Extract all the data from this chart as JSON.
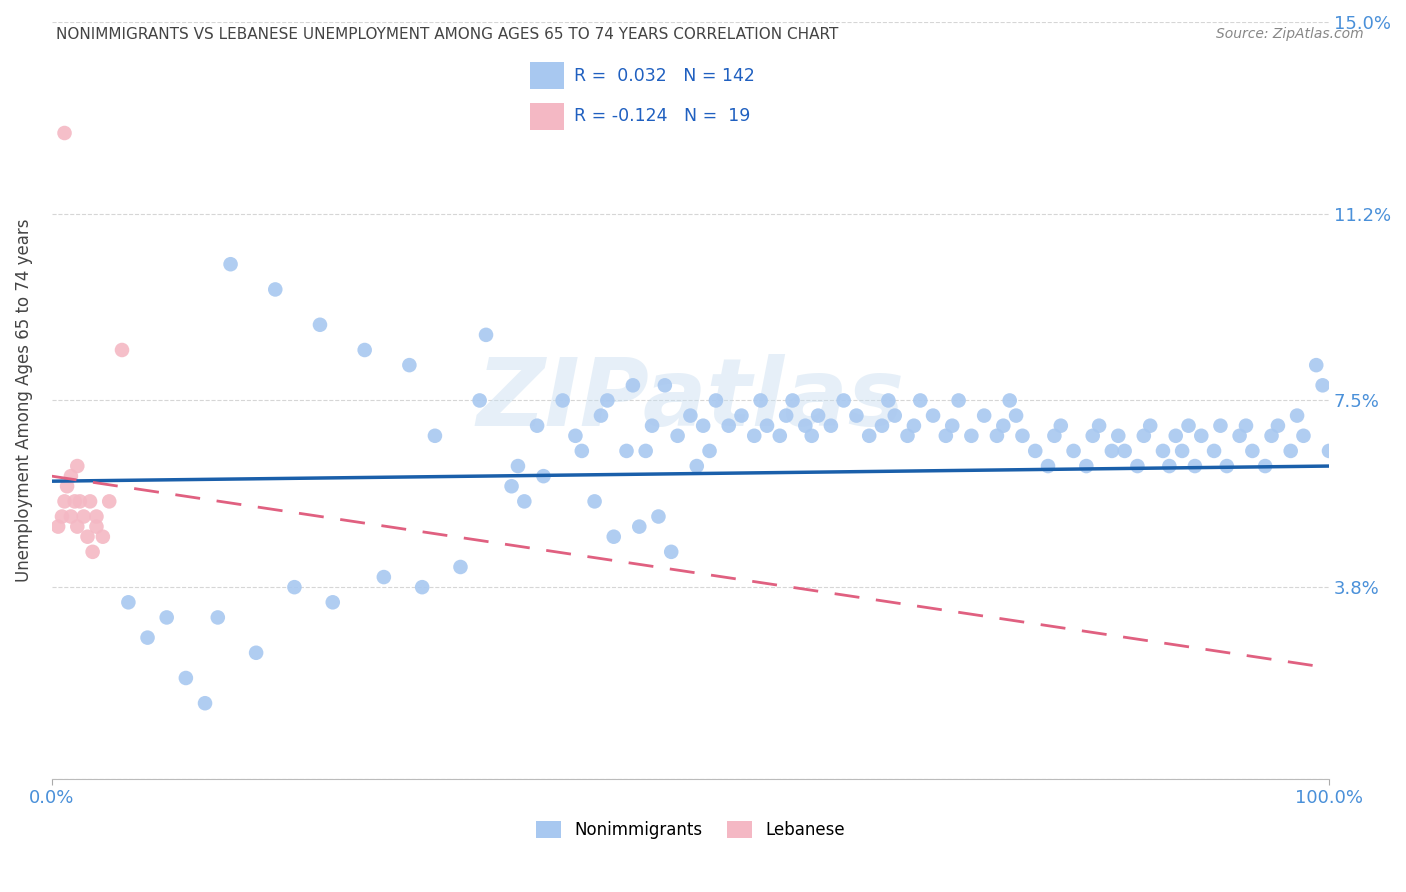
{
  "title": "NONIMMIGRANTS VS LEBANESE UNEMPLOYMENT AMONG AGES 65 TO 74 YEARS CORRELATION CHART",
  "source": "Source: ZipAtlas.com",
  "ylabel": "Unemployment Among Ages 65 to 74 years",
  "xlim": [
    0,
    100
  ],
  "ylim": [
    0,
    15.0
  ],
  "nonimmigrants_color": "#a8c8f0",
  "lebanese_color": "#f4b8c4",
  "trend_nonimmigrants_color": "#1a5faa",
  "trend_lebanese_color": "#e06080",
  "watermark": "ZIPatlas",
  "nonimmigrants_x": [
    14.0,
    17.5,
    21.0,
    24.5,
    28.0,
    30.0,
    33.5,
    36.5,
    38.0,
    40.0,
    41.0,
    43.0,
    45.0,
    45.5,
    46.5,
    47.0,
    48.0,
    49.0,
    50.0,
    51.0,
    51.5,
    52.0,
    53.0,
    54.0,
    55.0,
    55.5,
    56.0,
    57.0,
    57.5,
    58.0,
    59.0,
    59.5,
    60.0,
    61.0,
    62.0,
    63.0,
    64.0,
    65.0,
    65.5,
    66.0,
    67.0,
    67.5,
    68.0,
    69.0,
    70.0,
    70.5,
    71.0,
    72.0,
    73.0,
    74.0,
    74.5,
    75.0,
    75.5,
    76.0,
    77.0,
    78.0,
    78.5,
    79.0,
    80.0,
    81.0,
    81.5,
    82.0,
    83.0,
    83.5,
    84.0,
    85.0,
    85.5,
    86.0,
    87.0,
    87.5,
    88.0,
    88.5,
    89.0,
    89.5,
    90.0,
    91.0,
    91.5,
    92.0,
    93.0,
    93.5,
    94.0,
    95.0,
    95.5,
    96.0,
    97.0,
    97.5,
    98.0,
    99.0,
    99.5,
    100.0,
    37.0,
    47.5,
    50.5,
    44.0,
    46.0,
    48.5,
    42.5,
    36.0,
    13.0,
    16.0,
    19.0,
    22.0,
    26.0,
    29.0,
    32.0,
    6.0,
    7.5,
    9.0,
    10.5,
    12.0,
    34.0,
    38.5,
    41.5,
    43.5
  ],
  "nonimmigrants_y": [
    10.2,
    9.7,
    9.0,
    8.5,
    8.2,
    6.8,
    7.5,
    6.2,
    7.0,
    7.5,
    6.8,
    7.2,
    6.5,
    7.8,
    6.5,
    7.0,
    7.8,
    6.8,
    7.2,
    7.0,
    6.5,
    7.5,
    7.0,
    7.2,
    6.8,
    7.5,
    7.0,
    6.8,
    7.2,
    7.5,
    7.0,
    6.8,
    7.2,
    7.0,
    7.5,
    7.2,
    6.8,
    7.0,
    7.5,
    7.2,
    6.8,
    7.0,
    7.5,
    7.2,
    6.8,
    7.0,
    7.5,
    6.8,
    7.2,
    6.8,
    7.0,
    7.5,
    7.2,
    6.8,
    6.5,
    6.2,
    6.8,
    7.0,
    6.5,
    6.2,
    6.8,
    7.0,
    6.5,
    6.8,
    6.5,
    6.2,
    6.8,
    7.0,
    6.5,
    6.2,
    6.8,
    6.5,
    7.0,
    6.2,
    6.8,
    6.5,
    7.0,
    6.2,
    6.8,
    7.0,
    6.5,
    6.2,
    6.8,
    7.0,
    6.5,
    7.2,
    6.8,
    8.2,
    7.8,
    6.5,
    5.5,
    5.2,
    6.2,
    4.8,
    5.0,
    4.5,
    5.5,
    5.8,
    3.2,
    2.5,
    3.8,
    3.5,
    4.0,
    3.8,
    4.2,
    3.5,
    2.8,
    3.2,
    2.0,
    1.5,
    8.8,
    6.0,
    6.5,
    7.5
  ],
  "lebanese_x": [
    0.5,
    0.8,
    1.0,
    1.2,
    1.5,
    1.5,
    1.8,
    2.0,
    2.0,
    2.2,
    2.5,
    2.8,
    3.0,
    3.2,
    3.5,
    3.5,
    4.0,
    4.5,
    5.5,
    1.0
  ],
  "lebanese_y": [
    5.0,
    5.2,
    5.5,
    5.8,
    6.0,
    5.2,
    5.5,
    5.0,
    6.2,
    5.5,
    5.2,
    4.8,
    5.5,
    4.5,
    5.0,
    5.2,
    4.8,
    5.5,
    8.5,
    12.8
  ],
  "trend_nonimmigrants_y0": 5.9,
  "trend_nonimmigrants_y1": 6.2,
  "trend_lebanese_y0": 6.0,
  "trend_lebanese_y1": 2.2,
  "background_color": "#ffffff",
  "grid_color": "#cccccc",
  "title_color": "#444444",
  "source_color": "#888888",
  "axis_label_color": "#444444",
  "tick_color_right": "#4a90d9",
  "watermark_color": "#c8ddf0",
  "watermark_alpha": 0.45,
  "legend_R_color": "#2060c0",
  "legend_border_color": "#cccccc"
}
